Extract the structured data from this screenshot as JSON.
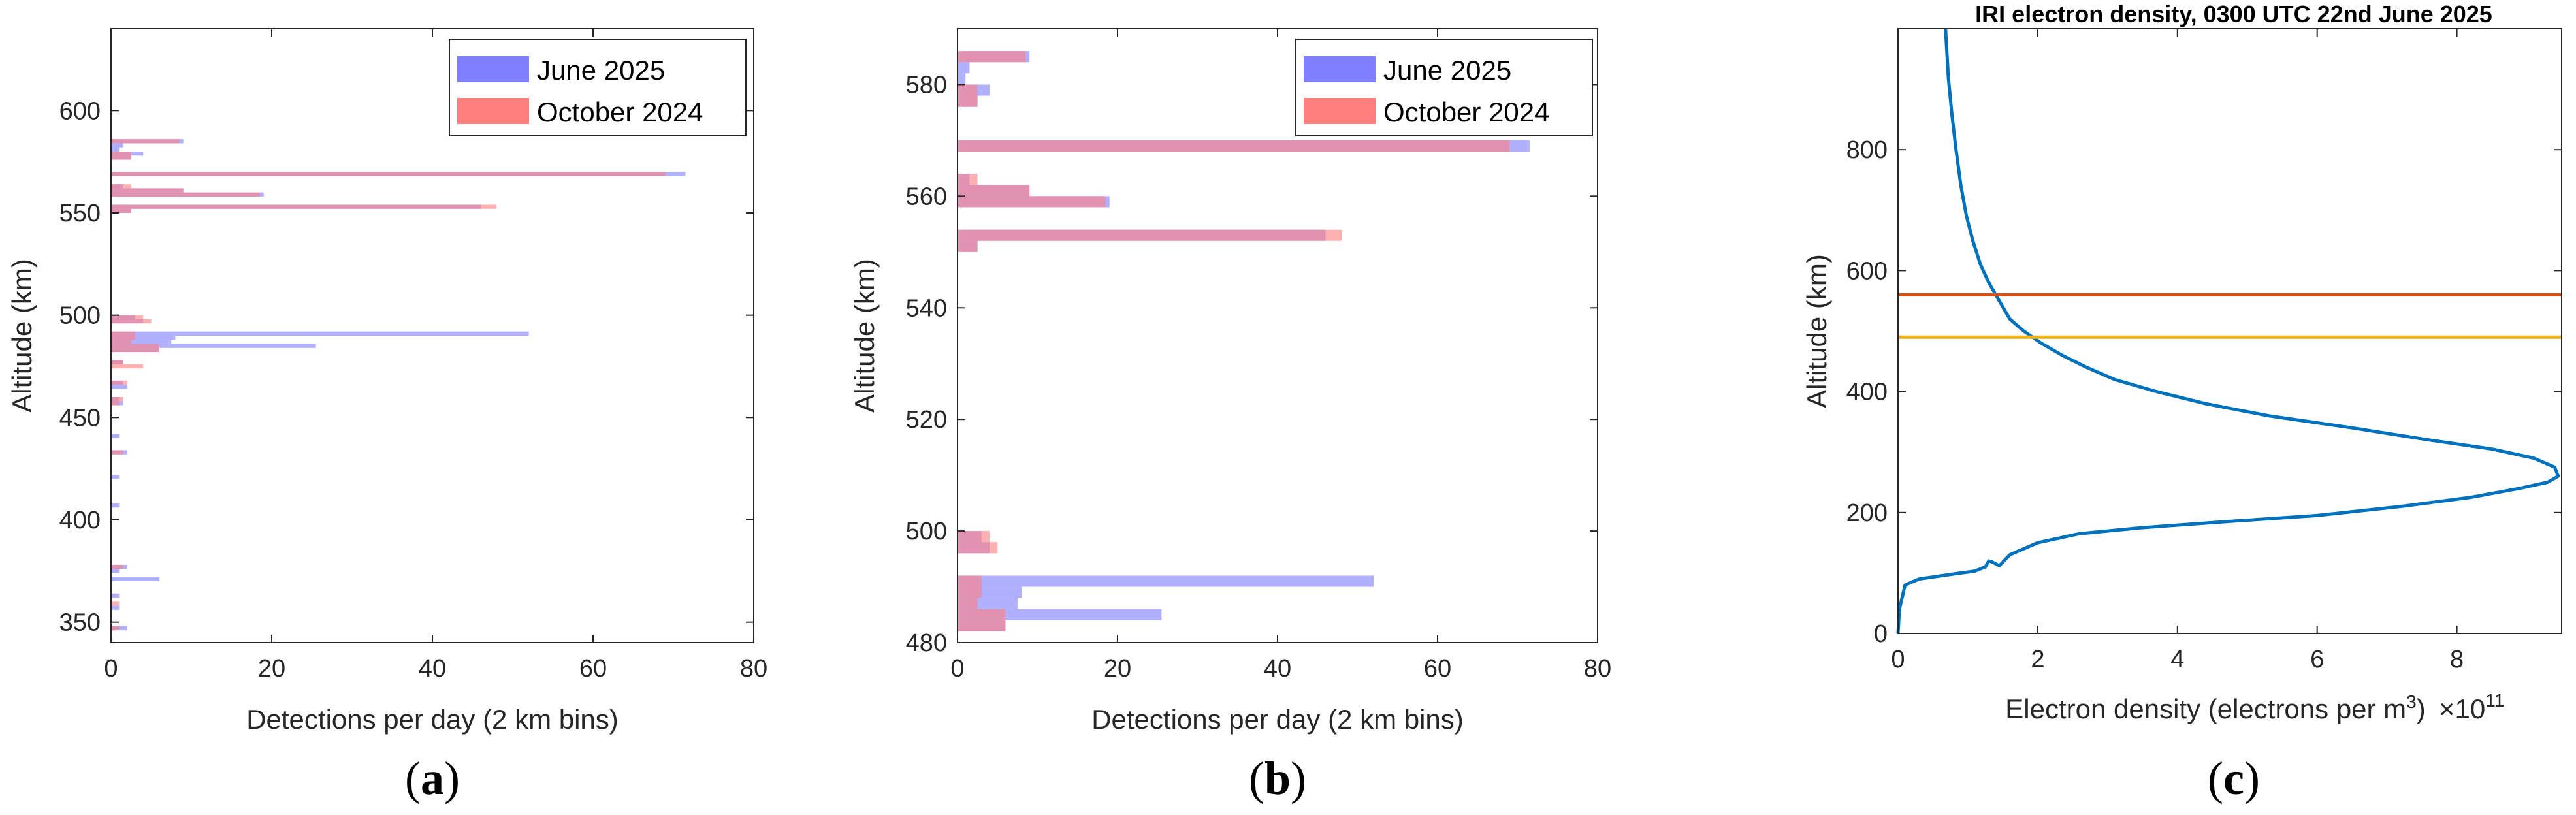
{
  "panels": [
    {
      "label_open": "(",
      "label_letter": "a",
      "label_close": ")"
    },
    {
      "label_open": "(",
      "label_letter": "b",
      "label_close": ")"
    },
    {
      "label_open": "(",
      "label_letter": "c",
      "label_close": ")"
    }
  ],
  "chart_data": [
    {
      "type": "bar",
      "orientation": "horizontal",
      "title": "",
      "xlabel": "Detections per day (2 km bins)",
      "ylabel": "Altitude (km)",
      "xlim": [
        0,
        80
      ],
      "ylim": [
        340,
        640
      ],
      "xticks": [
        0,
        20,
        40,
        60,
        80
      ],
      "yticks": [
        350,
        400,
        450,
        500,
        550,
        600
      ],
      "bin_width_km": 2,
      "legend_position": "top-right",
      "series": [
        {
          "name": "June 2025",
          "color": "#7f7fff",
          "bins": [
            [
              584,
              9
            ],
            [
              582,
              1.5
            ],
            [
              580,
              1
            ],
            [
              578,
              4
            ],
            [
              576,
              2.5
            ],
            [
              568,
              71.5
            ],
            [
              562,
              1.5
            ],
            [
              560,
              9
            ],
            [
              558,
              19
            ],
            [
              552,
              46
            ],
            [
              550,
              2.5
            ],
            [
              498,
              3
            ],
            [
              496,
              4
            ],
            [
              490,
              52
            ],
            [
              488,
              8
            ],
            [
              486,
              7.5
            ],
            [
              484,
              25.5
            ],
            [
              482,
              6
            ],
            [
              476,
              1.5
            ],
            [
              466,
              1.5
            ],
            [
              464,
              2
            ],
            [
              458,
              1
            ],
            [
              456,
              1.5
            ],
            [
              440,
              1
            ],
            [
              432,
              2
            ],
            [
              420,
              1
            ],
            [
              406,
              1
            ],
            [
              376,
              2
            ],
            [
              374,
              1
            ],
            [
              370,
              6
            ],
            [
              362,
              1
            ],
            [
              356,
              1
            ],
            [
              346,
              2
            ]
          ]
        },
        {
          "name": "October 2024",
          "color": "#ff7f7f",
          "bins": [
            [
              584,
              8.5
            ],
            [
              578,
              2.5
            ],
            [
              576,
              2.5
            ],
            [
              568,
              69
            ],
            [
              562,
              2.5
            ],
            [
              560,
              9
            ],
            [
              558,
              18.5
            ],
            [
              552,
              48
            ],
            [
              550,
              2.5
            ],
            [
              498,
              4
            ],
            [
              496,
              5
            ],
            [
              490,
              3
            ],
            [
              488,
              3
            ],
            [
              486,
              2.5
            ],
            [
              484,
              6
            ],
            [
              482,
              6
            ],
            [
              476,
              1.5
            ],
            [
              474,
              4
            ],
            [
              466,
              2
            ],
            [
              458,
              1.5
            ],
            [
              456,
              1
            ],
            [
              432,
              1.5
            ],
            [
              376,
              1.5
            ],
            [
              358,
              1
            ],
            [
              346,
              1
            ]
          ]
        }
      ]
    },
    {
      "type": "bar",
      "orientation": "horizontal",
      "title": "",
      "xlabel": "Detections per day (2 km bins)",
      "ylabel": "Altitude (km)",
      "xlim": [
        0,
        80
      ],
      "ylim": [
        480,
        590
      ],
      "xticks": [
        0,
        20,
        40,
        60,
        80
      ],
      "yticks": [
        480,
        500,
        520,
        540,
        560,
        580
      ],
      "bin_width_km": 2,
      "legend_position": "top-right",
      "series": [
        {
          "name": "June 2025",
          "color": "#7f7fff",
          "bins": [
            [
              584,
              9
            ],
            [
              582,
              1.5
            ],
            [
              580,
              1
            ],
            [
              578,
              4
            ],
            [
              576,
              2.5
            ],
            [
              568,
              71.5
            ],
            [
              562,
              1.5
            ],
            [
              560,
              9
            ],
            [
              558,
              19
            ],
            [
              552,
              46
            ],
            [
              550,
              2.5
            ],
            [
              498,
              3
            ],
            [
              496,
              4
            ],
            [
              490,
              52
            ],
            [
              488,
              8
            ],
            [
              486,
              7.5
            ],
            [
              484,
              25.5
            ],
            [
              482,
              6
            ]
          ]
        },
        {
          "name": "October 2024",
          "color": "#ff7f7f",
          "bins": [
            [
              584,
              8.5
            ],
            [
              578,
              2.5
            ],
            [
              576,
              2.5
            ],
            [
              568,
              69
            ],
            [
              562,
              2.5
            ],
            [
              560,
              9
            ],
            [
              558,
              18.5
            ],
            [
              552,
              48
            ],
            [
              550,
              2.5
            ],
            [
              498,
              4
            ],
            [
              496,
              5
            ],
            [
              490,
              3
            ],
            [
              488,
              3
            ],
            [
              486,
              2.5
            ],
            [
              484,
              6
            ],
            [
              482,
              6
            ]
          ]
        }
      ]
    },
    {
      "type": "line",
      "title": "IRI electron density, 0300 UTC 22nd June 2025",
      "xlabel_main": "Electron density (electrons per m",
      "xlabel_sup": "3",
      "xlabel_close": ")",
      "x_multiplier_base": "×10",
      "x_multiplier_exp": "11",
      "ylabel": "Altitude (km)",
      "xlim": [
        0,
        9.5
      ],
      "ylim": [
        0,
        1000
      ],
      "xticks": [
        0,
        2,
        4,
        6,
        8
      ],
      "yticks": [
        0,
        200,
        400,
        600,
        800
      ],
      "series": [
        {
          "color": "#0072bd",
          "x": [
            0,
            0.02,
            0.1,
            0.3,
            0.6,
            0.9,
            1.1,
            1.25,
            1.3,
            1.35,
            1.45,
            1.6,
            2.0,
            2.6,
            3.5,
            4.7,
            6.0,
            7.2,
            8.2,
            8.9,
            9.3,
            9.45,
            9.4,
            9.1,
            8.5,
            7.6,
            6.5,
            5.3,
            4.4,
            3.7,
            3.1,
            2.7,
            2.35,
            2.05,
            1.8,
            1.6,
            1.45,
            1.3,
            1.18,
            1.07,
            0.98,
            0.9,
            0.83,
            0.77,
            0.72,
            0.68
          ],
          "y": [
            0,
            40,
            80,
            90,
            95,
            100,
            103,
            110,
            120,
            118,
            112,
            130,
            150,
            165,
            175,
            185,
            195,
            210,
            225,
            240,
            250,
            260,
            275,
            290,
            305,
            320,
            340,
            360,
            380,
            400,
            420,
            440,
            460,
            480,
            500,
            520,
            550,
            580,
            610,
            650,
            690,
            740,
            800,
            860,
            920,
            1000
          ]
        },
        {
          "color": "#d95319",
          "type": "hline",
          "y": 560
        },
        {
          "color": "#edb120",
          "type": "hline",
          "y": 490
        }
      ]
    }
  ]
}
